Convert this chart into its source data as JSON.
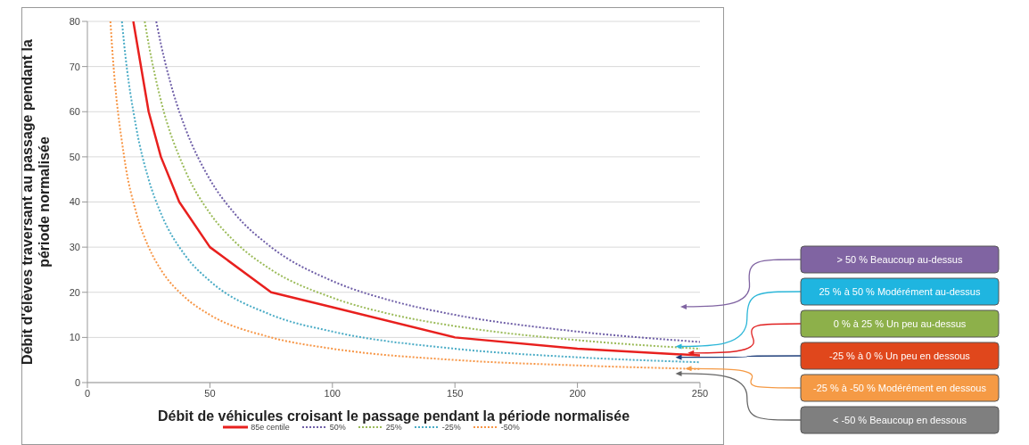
{
  "chart_data": {
    "type": "line",
    "xlabel": "Débit de véhicules croisant le passage pendant la période normalisée",
    "ylabel": "Débit d'élèves traversant au passage pendant la période normalisée",
    "xlim": [
      0,
      250
    ],
    "xticks": [
      0,
      50,
      100,
      150,
      200,
      250
    ],
    "ylim": [
      0,
      80
    ],
    "yticks": [
      0,
      10,
      20,
      30,
      40,
      50,
      60,
      70,
      80
    ],
    "grid": "y",
    "legend": "bottom",
    "marker": "none",
    "series": [
      {
        "name": "85e centile",
        "color": "#e8201e",
        "line_style": "solid",
        "x": [
          18.75,
          25,
          30,
          37.5,
          50,
          75,
          100,
          150,
          200,
          250
        ],
        "values": [
          80,
          60,
          50,
          40,
          30,
          20,
          16.7,
          10,
          7.5,
          6
        ]
      },
      {
        "name": "50%",
        "color": "#7060a8",
        "line_style": "dotted",
        "x": [
          28.1,
          30,
          35,
          40,
          50,
          60,
          75,
          100,
          125,
          150,
          200,
          250
        ],
        "values": [
          80,
          75,
          64.3,
          56.3,
          45,
          37.5,
          30,
          22.5,
          18,
          15,
          11.3,
          9
        ]
      },
      {
        "name": "25%",
        "color": "#9bbb59",
        "line_style": "dotted",
        "x": [
          23.4,
          25,
          30,
          40,
          50,
          60,
          75,
          100,
          125,
          150,
          200,
          250
        ],
        "values": [
          80,
          75,
          62.5,
          46.9,
          37.5,
          31.3,
          25,
          18.8,
          15,
          12.5,
          9.4,
          7.5
        ]
      },
      {
        "name": "-25%",
        "color": "#4bacc6",
        "line_style": "dotted",
        "x": [
          14.1,
          15,
          20,
          25,
          30,
          40,
          50,
          75,
          100,
          150,
          200,
          250
        ],
        "values": [
          80,
          75,
          56.3,
          45,
          37.5,
          28.1,
          22.5,
          15,
          11.3,
          7.5,
          5.6,
          4.5
        ]
      },
      {
        "name": "-50%",
        "color": "#f79646",
        "line_style": "dotted",
        "x": [
          9.4,
          10,
          15,
          20,
          25,
          30,
          40,
          50,
          75,
          100,
          150,
          200,
          250
        ],
        "values": [
          80,
          75,
          50,
          37.5,
          30,
          25,
          18.8,
          15,
          10,
          7.5,
          5,
          3.8,
          3
        ]
      }
    ],
    "annotations": [
      "> 50 % Beaucoup au-dessus",
      "25 % à 50 % Modérément au-dessus",
      "0 % à 25 % Un peu au-dessus",
      "-25 % à 0 % Un peu en dessous",
      {
        "text": "-25 % à -50 % Modérément en dessous",
        "x": 244,
        "y": 3.1
      },
      "< -50 % Beaucoup en dessous"
    ]
  }
}
